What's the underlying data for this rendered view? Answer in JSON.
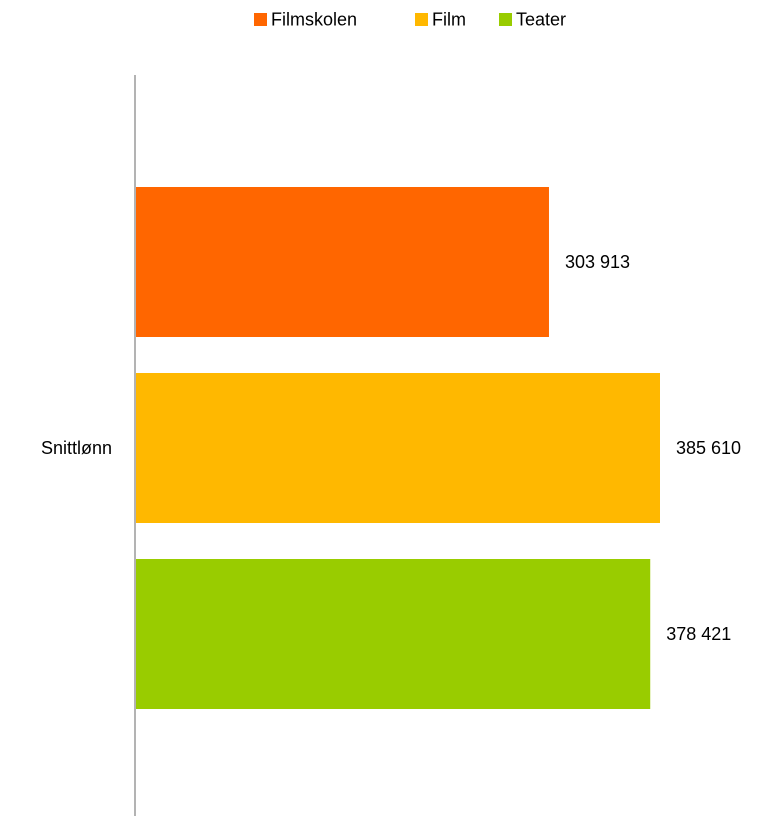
{
  "chart_data": {
    "type": "bar",
    "orientation": "horizontal",
    "categories": [
      "Snittlønn"
    ],
    "series": [
      {
        "name": "Filmskolen",
        "values": [
          303913
        ],
        "label": "303 913",
        "color": "#FF6600"
      },
      {
        "name": "Film",
        "values": [
          385610
        ],
        "label": "385 610",
        "color": "#FFB800"
      },
      {
        "name": "Teater",
        "values": [
          378421
        ],
        "label": "378 421",
        "color": "#99CC00"
      }
    ],
    "title": "",
    "xlabel": "",
    "ylabel": "",
    "xlim": [
      0,
      400000
    ],
    "grid": false,
    "legend": "top-center"
  }
}
